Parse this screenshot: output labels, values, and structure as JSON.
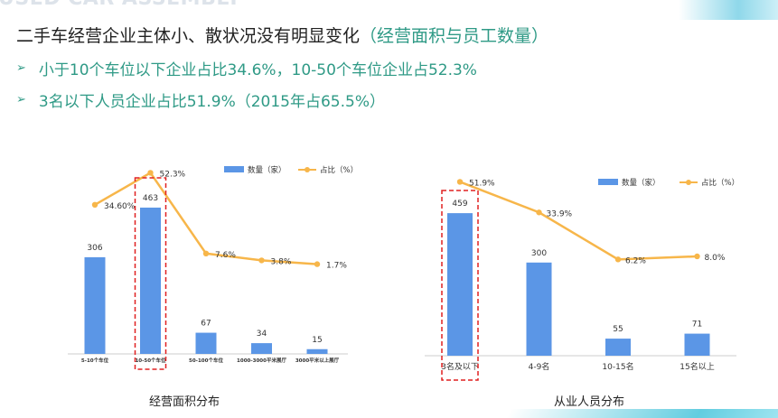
{
  "watermark": "USED CAR ASSEMBLY",
  "headline": {
    "main": "二手车经营企业主体小、散状况没有明显变化",
    "sub": "（经营面积与员工数量）"
  },
  "bullets": [
    "小于10个车位以下企业占比34.6%，10-50个车位企业占52.3%",
    "3名以下人员企业占比51.9%（2015年占65.5%）"
  ],
  "colors": {
    "bar": "#5b96e6",
    "line": "#f7b64a",
    "highlight": "#e02020",
    "accent_text": "#2f9a86"
  },
  "chart_data": [
    {
      "type": "bar",
      "title": "经营面积分布",
      "categories": [
        "5-10个车位",
        "10-50个车位",
        "50-100个车位",
        "1000-3000平米展厅",
        "3000平米以上展厅"
      ],
      "series": [
        {
          "name": "数量（家）",
          "type": "bar",
          "values": [
            306,
            463,
            67,
            34,
            15
          ],
          "labels": [
            "306",
            "463",
            "67",
            "34",
            "15"
          ]
        },
        {
          "name": "占比（%）",
          "type": "line",
          "values": [
            34.6,
            52.3,
            7.6,
            3.8,
            1.7
          ],
          "labels": [
            "34.60%",
            "52.3%",
            "7.6%",
            "3.8%",
            "1.7%"
          ]
        }
      ],
      "highlight_index": 1,
      "legend": "top-right",
      "grid": false
    },
    {
      "type": "bar",
      "title": "从业人员分布",
      "categories": [
        "3名及以下",
        "4-9名",
        "10-15名",
        "15名以上"
      ],
      "series": [
        {
          "name": "数量（家）",
          "type": "bar",
          "values": [
            459,
            300,
            55,
            71
          ],
          "labels": [
            "459",
            "300",
            "55",
            "71"
          ]
        },
        {
          "name": "占比（%）",
          "type": "line",
          "values": [
            51.9,
            33.9,
            6.2,
            8.0
          ],
          "labels": [
            "51.9%",
            "33.9%",
            "6.2%",
            "8.0%"
          ]
        }
      ],
      "highlight_index": 0,
      "legend": "top-right",
      "grid": false
    }
  ]
}
